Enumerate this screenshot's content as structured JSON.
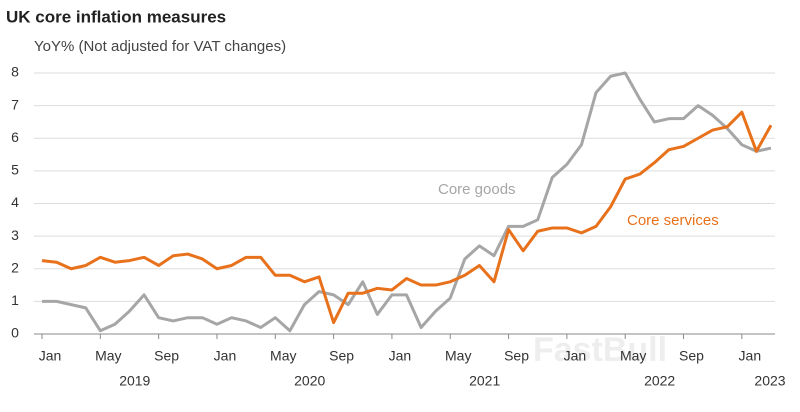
{
  "chart_data": {
    "type": "line",
    "title": "UK core inflation measures",
    "subtitle": "YoY% (Not adjusted for VAT changes)",
    "categories": [
      "Jan",
      null,
      null,
      null,
      "May",
      null,
      null,
      null,
      "Sep",
      null,
      null,
      null,
      "Jan",
      null,
      null,
      null,
      "May",
      null,
      null,
      null,
      "Sep",
      null,
      null,
      null,
      "Jan",
      null,
      null,
      null,
      "May",
      null,
      null,
      null,
      "Sep",
      null,
      null,
      null,
      "Jan",
      null,
      null,
      null,
      "May",
      null,
      null,
      null,
      "Sep",
      null,
      null,
      null,
      "Jan",
      null,
      null
    ],
    "year_labels": [
      "2019",
      "2020",
      "2021",
      "2022",
      "2023"
    ],
    "series": [
      {
        "name": "Core goods",
        "color": "#a6a6a6",
        "values": [
          1.0,
          1.0,
          0.9,
          0.8,
          0.1,
          0.3,
          0.7,
          1.2,
          0.5,
          0.4,
          0.5,
          0.5,
          0.3,
          0.5,
          0.4,
          0.2,
          0.5,
          0.1,
          0.9,
          1.3,
          1.2,
          0.9,
          1.6,
          0.6,
          1.2,
          1.2,
          0.2,
          0.7,
          1.1,
          2.3,
          2.7,
          2.4,
          3.3,
          3.3,
          3.5,
          4.8,
          5.2,
          5.8,
          7.4,
          7.9,
          8.0,
          7.2,
          6.5,
          6.6,
          6.6,
          7.0,
          6.7,
          6.3,
          5.8,
          5.6,
          5.7
        ]
      },
      {
        "name": "Core services",
        "color": "#e8711c",
        "values": [
          2.25,
          2.2,
          2.0,
          2.1,
          2.35,
          2.2,
          2.25,
          2.35,
          2.1,
          2.4,
          2.45,
          2.3,
          2.0,
          2.1,
          2.35,
          2.35,
          1.8,
          1.8,
          1.6,
          1.75,
          0.35,
          1.25,
          1.25,
          1.4,
          1.35,
          1.7,
          1.5,
          1.5,
          1.6,
          1.8,
          2.1,
          1.6,
          3.2,
          2.55,
          3.15,
          3.25,
          3.25,
          3.1,
          3.3,
          3.9,
          4.75,
          4.9,
          5.25,
          5.65,
          5.75,
          6.0,
          6.25,
          6.35,
          6.8,
          5.6,
          6.4
        ]
      }
    ],
    "ylim": [
      0,
      8
    ],
    "yticks": [
      0,
      1,
      2,
      3,
      4,
      5,
      6,
      7,
      8
    ],
    "grid": true,
    "watermark": "FastBull"
  }
}
